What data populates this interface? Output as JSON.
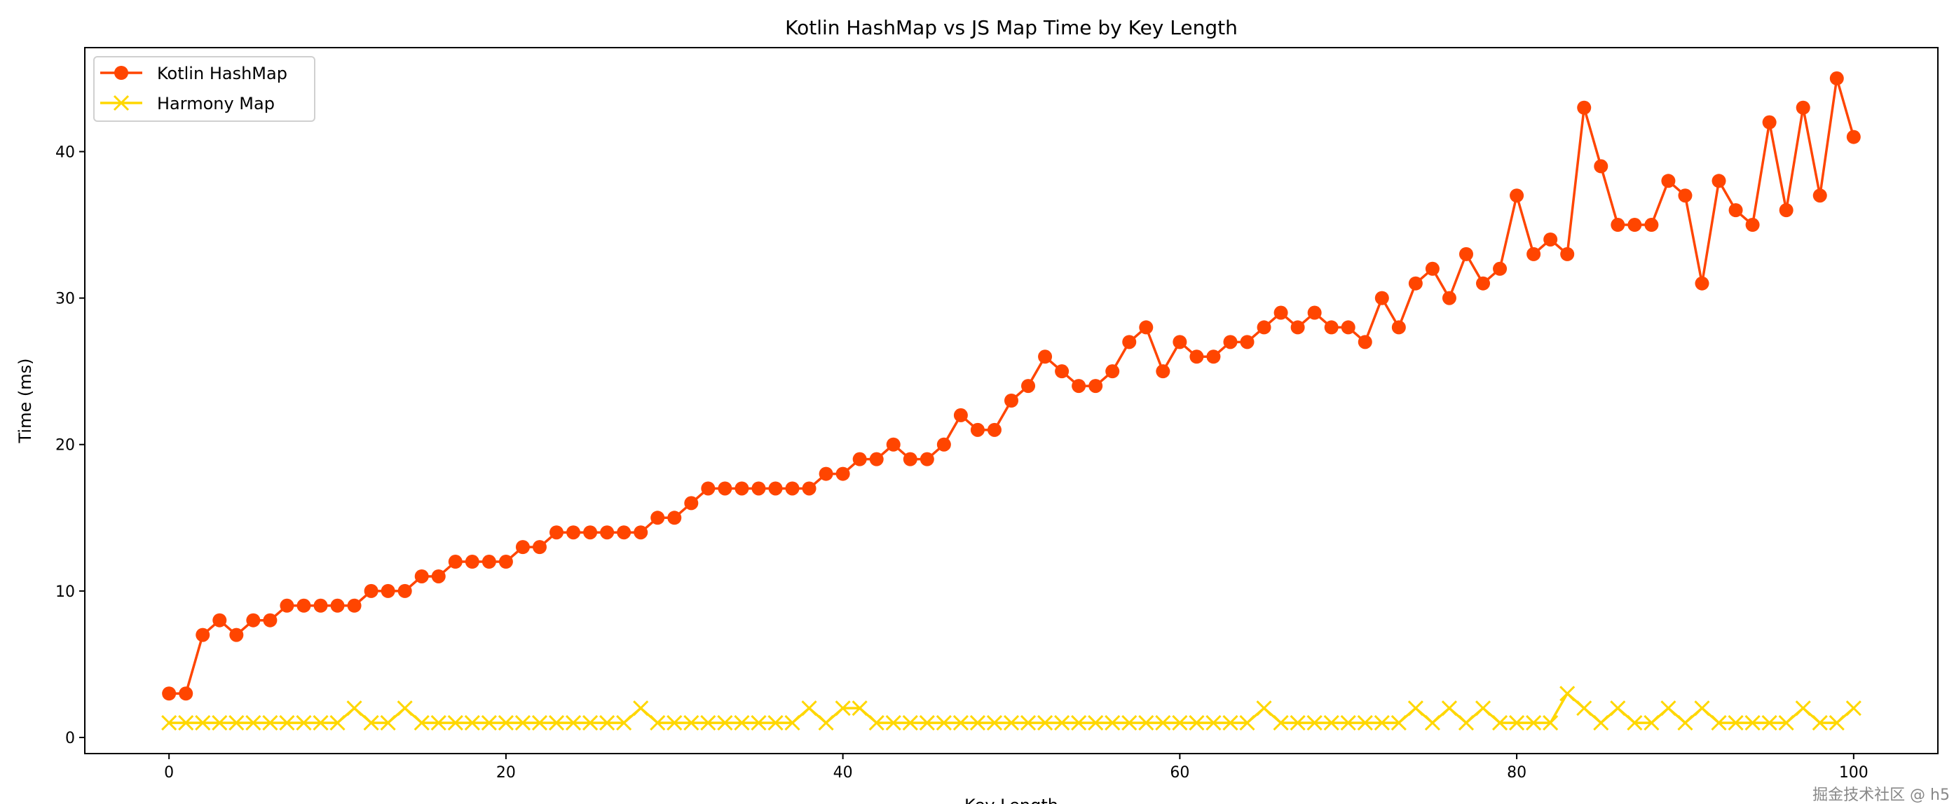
{
  "chart_data": {
    "type": "line",
    "title": "Kotlin HashMap vs JS Map Time by Key Length",
    "xlabel": "Key Length",
    "ylabel": "Time (ms)",
    "xlim": [
      -5,
      105
    ],
    "ylim": [
      -1.1,
      47.1
    ],
    "xticks": [
      0,
      20,
      40,
      60,
      80,
      100
    ],
    "yticks": [
      0,
      10,
      20,
      30,
      40
    ],
    "grid": false,
    "legend_placement": "upper-left",
    "x": [
      0,
      1,
      2,
      3,
      4,
      5,
      6,
      7,
      8,
      9,
      10,
      11,
      12,
      13,
      14,
      15,
      16,
      17,
      18,
      19,
      20,
      21,
      22,
      23,
      24,
      25,
      26,
      27,
      28,
      29,
      30,
      31,
      32,
      33,
      34,
      35,
      36,
      37,
      38,
      39,
      40,
      41,
      42,
      43,
      44,
      45,
      46,
      47,
      48,
      49,
      50,
      51,
      52,
      53,
      54,
      55,
      56,
      57,
      58,
      59,
      60,
      61,
      62,
      63,
      64,
      65,
      66,
      67,
      68,
      69,
      70,
      71,
      72,
      73,
      74,
      75,
      76,
      77,
      78,
      79,
      80,
      81,
      82,
      83,
      84,
      85,
      86,
      87,
      88,
      89,
      90,
      91,
      92,
      93,
      94,
      95,
      96,
      97,
      98,
      99,
      100
    ],
    "series": [
      {
        "name": "Kotlin HashMap",
        "color": "#FF4500",
        "marker": "circle",
        "values": [
          3,
          3,
          7,
          8,
          7,
          8,
          8,
          9,
          9,
          9,
          9,
          9,
          10,
          10,
          10,
          11,
          11,
          12,
          12,
          12,
          12,
          13,
          13,
          14,
          14,
          14,
          14,
          14,
          14,
          15,
          15,
          16,
          17,
          17,
          17,
          17,
          17,
          17,
          17,
          18,
          18,
          19,
          19,
          20,
          19,
          19,
          20,
          22,
          21,
          21,
          23,
          24,
          26,
          25,
          24,
          24,
          25,
          27,
          28,
          25,
          27,
          26,
          26,
          27,
          27,
          28,
          29,
          28,
          29,
          28,
          28,
          27,
          30,
          28,
          31,
          32,
          30,
          33,
          31,
          32,
          37,
          33,
          34,
          33,
          43,
          39,
          35,
          35,
          35,
          38,
          37,
          31,
          38,
          36,
          35,
          42,
          36,
          43,
          37,
          45,
          41
        ]
      },
      {
        "name": "Harmony Map",
        "color": "#FFD700",
        "marker": "x",
        "values": [
          1,
          1,
          1,
          1,
          1,
          1,
          1,
          1,
          1,
          1,
          1,
          2,
          1,
          1,
          2,
          1,
          1,
          1,
          1,
          1,
          1,
          1,
          1,
          1,
          1,
          1,
          1,
          1,
          2,
          1,
          1,
          1,
          1,
          1,
          1,
          1,
          1,
          1,
          2,
          1,
          2,
          2,
          1,
          1,
          1,
          1,
          1,
          1,
          1,
          1,
          1,
          1,
          1,
          1,
          1,
          1,
          1,
          1,
          1,
          1,
          1,
          1,
          1,
          1,
          1,
          2,
          1,
          1,
          1,
          1,
          1,
          1,
          1,
          1,
          2,
          1,
          2,
          1,
          2,
          1,
          1,
          1,
          1,
          3,
          2,
          1,
          2,
          1,
          1,
          2,
          1,
          2,
          1,
          1,
          1,
          1,
          1,
          2,
          1,
          1,
          2
        ]
      }
    ]
  },
  "watermark": "掘金技术社区 @ h5"
}
